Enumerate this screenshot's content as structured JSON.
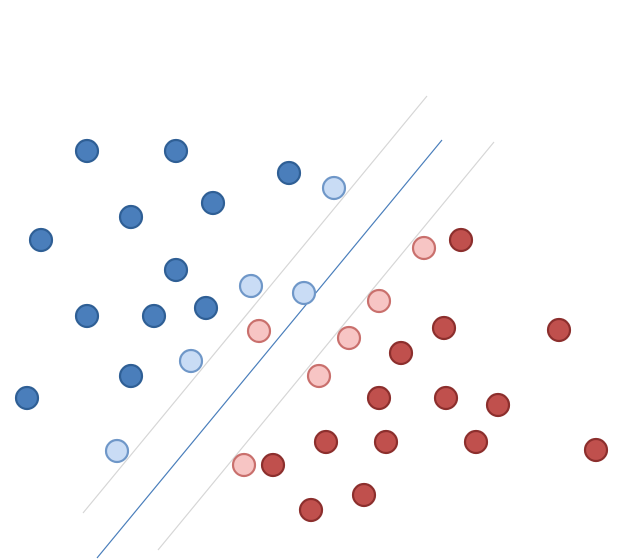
{
  "diagram": {
    "type": "svm-margin-illustration",
    "classes": [
      {
        "id": "blue",
        "fill": "#4a7ebb",
        "stroke": "#2f5f95",
        "support_fill": "#c9dcf5",
        "support_stroke": "#6f97c8"
      },
      {
        "id": "red",
        "fill": "#c0504d",
        "stroke": "#8c2f2d",
        "support_fill": "#f7c5c4",
        "support_stroke": "#c9706d"
      }
    ],
    "line_colors": {
      "decision": "#4a7ebb",
      "margin": "#d6d6d6"
    }
  }
}
